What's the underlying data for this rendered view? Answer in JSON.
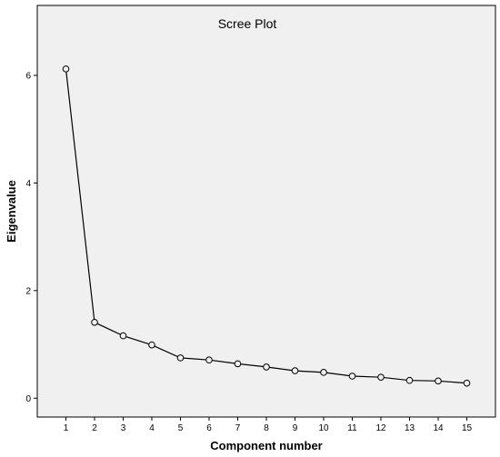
{
  "chart_data": {
    "type": "line",
    "title": "Scree Plot",
    "xlabel": "Component number",
    "ylabel": "Eigenvalue",
    "x": [
      1,
      2,
      3,
      4,
      5,
      6,
      7,
      8,
      9,
      10,
      11,
      12,
      13,
      14,
      15
    ],
    "series": [
      {
        "values": [
          6.12,
          1.41,
          1.16,
          0.99,
          0.75,
          0.71,
          0.64,
          0.58,
          0.51,
          0.48,
          0.41,
          0.39,
          0.33,
          0.32,
          0.28
        ]
      }
    ],
    "xlim": [
      0,
      16
    ],
    "ylim": [
      -0.35,
      7.3
    ],
    "yticks": [
      0,
      2,
      4,
      6
    ],
    "xticks": [
      1,
      2,
      3,
      4,
      5,
      6,
      7,
      8,
      9,
      10,
      11,
      12,
      13,
      14,
      15
    ],
    "grid": false,
    "legend": "none",
    "colors": {
      "plot_background": "#f0f0f0",
      "line": "#000000",
      "marker_fill": "#f0f0f0"
    }
  }
}
